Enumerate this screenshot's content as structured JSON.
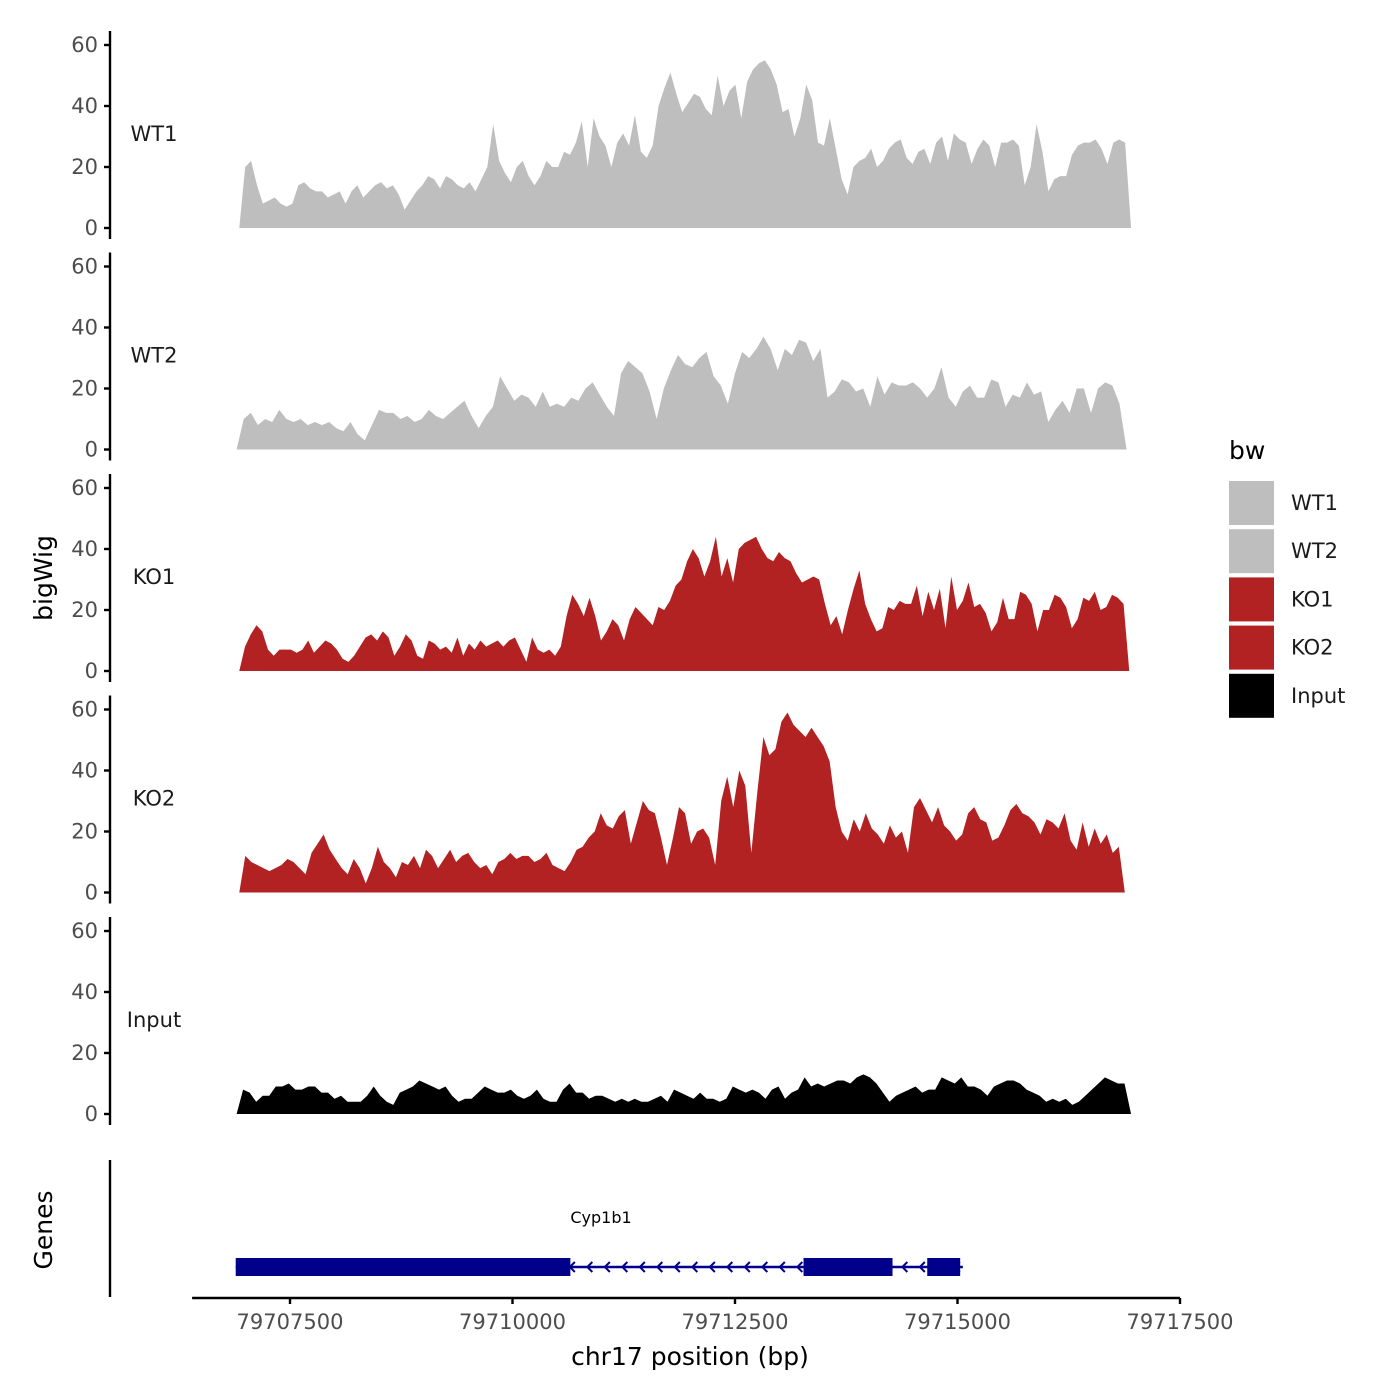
{
  "chart_data": {
    "type": "area",
    "ylabel": "bigWig",
    "xlabel": "chr17 position (bp)",
    "ylim": [
      0,
      60
    ],
    "yticks": [
      0,
      20,
      40,
      60
    ],
    "xlim": [
      79706400,
      79717500
    ],
    "xticks": [
      79707500,
      79710000,
      79712500,
      79715000,
      79717500
    ],
    "legend": {
      "title": "bw",
      "position": "right",
      "entries": [
        {
          "name": "WT1",
          "color": "#bebebe"
        },
        {
          "name": "WT2",
          "color": "#bebebe"
        },
        {
          "name": "KO1",
          "color": "#b22222"
        },
        {
          "name": "KO2",
          "color": "#b22222"
        },
        {
          "name": "Input",
          "color": "#000000"
        }
      ]
    },
    "tracks": [
      {
        "name": "WT1",
        "color": "#bebebe",
        "x_start": 79706930,
        "x_end": 79716950,
        "values": [
          0,
          20,
          22,
          14,
          8,
          9,
          10,
          8,
          7,
          8,
          14,
          15,
          13,
          12,
          12,
          10,
          11,
          12,
          8,
          12,
          14,
          10,
          12,
          14,
          15,
          13,
          14,
          11,
          6,
          9,
          12,
          14,
          17,
          16,
          13,
          17,
          16,
          14,
          13,
          15,
          12,
          16,
          20,
          34,
          22,
          18,
          15,
          20,
          22,
          17,
          14,
          17,
          22,
          20,
          20,
          25,
          24,
          28,
          35,
          20,
          36,
          30,
          27,
          20,
          28,
          31,
          27,
          37,
          25,
          23,
          27,
          40,
          46,
          51,
          44,
          38,
          41,
          44,
          43,
          39,
          37,
          50,
          40,
          45,
          47,
          36,
          48,
          52,
          54,
          55,
          52,
          47,
          38,
          39,
          30,
          36,
          47,
          42,
          28,
          27,
          36,
          26,
          16,
          11,
          20,
          22,
          23,
          26,
          20,
          22,
          26,
          28,
          29,
          23,
          21,
          25,
          26,
          21,
          28,
          30,
          22,
          31,
          29,
          28,
          21,
          26,
          29,
          27,
          20,
          28,
          28,
          29,
          27,
          14,
          20,
          34,
          25,
          12,
          16,
          17,
          17,
          24,
          27,
          28,
          28,
          29,
          26,
          21,
          28,
          29,
          28,
          0
        ]
      },
      {
        "name": "WT2",
        "color": "#bebebe",
        "x_start": 79706900,
        "x_end": 79716900,
        "values": [
          0,
          10,
          12,
          8,
          10,
          9,
          13,
          10,
          9,
          10,
          8,
          9,
          8,
          9,
          7,
          6,
          9,
          5,
          3,
          8,
          13,
          12,
          12,
          10,
          11,
          9,
          10,
          13,
          11,
          10,
          12,
          14,
          16,
          11,
          7,
          11,
          14,
          24,
          20,
          16,
          18,
          17,
          14,
          19,
          14,
          15,
          14,
          17,
          16,
          20,
          22,
          18,
          14,
          11,
          25,
          29,
          27,
          25,
          19,
          10,
          20,
          26,
          31,
          28,
          27,
          30,
          32,
          24,
          21,
          15,
          25,
          32,
          30,
          33,
          37,
          33,
          26,
          33,
          31,
          36,
          35,
          29,
          33,
          17,
          19,
          23,
          22,
          19,
          20,
          14,
          24,
          18,
          22,
          21,
          21,
          22,
          20,
          17,
          20,
          27,
          17,
          14,
          19,
          21,
          17,
          17,
          23,
          22,
          14,
          18,
          17,
          22,
          18,
          19,
          9,
          13,
          16,
          12,
          20,
          20,
          12,
          20,
          22,
          21,
          15,
          0
        ]
      },
      {
        "name": "KO1",
        "color": "#b22222",
        "x_start": 79706930,
        "x_end": 79716930,
        "values": [
          0,
          8,
          12,
          15,
          13,
          7,
          5,
          7,
          7,
          7,
          6,
          7,
          10,
          6,
          8,
          10,
          9,
          7,
          4,
          3,
          5,
          8,
          11,
          12,
          10,
          13,
          11,
          5,
          8,
          12,
          10,
          5,
          4,
          10,
          9,
          7,
          8,
          6,
          11,
          5,
          9,
          7,
          10,
          8,
          9,
          10,
          8,
          10,
          11,
          7,
          3,
          11,
          7,
          6,
          7,
          5,
          8,
          18,
          25,
          22,
          18,
          24,
          18,
          10,
          13,
          17,
          15,
          10,
          17,
          21,
          19,
          17,
          15,
          21,
          20,
          23,
          28,
          30,
          36,
          40,
          37,
          31,
          36,
          44,
          31,
          37,
          29,
          40,
          42,
          43,
          44,
          40,
          37,
          36,
          39,
          37,
          36,
          32,
          29,
          30,
          31,
          30,
          22,
          15,
          18,
          12,
          20,
          27,
          33,
          22,
          17,
          13,
          14,
          21,
          20,
          23,
          22,
          22,
          28,
          18,
          26,
          20,
          27,
          14,
          31,
          20,
          23,
          29,
          21,
          22,
          19,
          13,
          16,
          24,
          17,
          17,
          26,
          25,
          22,
          13,
          20,
          20,
          25,
          24,
          21,
          14,
          17,
          24,
          23,
          26,
          20,
          21,
          25,
          24,
          22,
          0
        ]
      },
      {
        "name": "KO2",
        "color": "#b22222",
        "x_start": 79706930,
        "x_end": 79716880,
        "values": [
          0,
          12,
          10,
          9,
          8,
          7,
          8,
          9,
          11,
          10,
          8,
          6,
          13,
          16,
          19,
          14,
          11,
          8,
          6,
          11,
          8,
          3,
          8,
          15,
          10,
          8,
          5,
          10,
          9,
          12,
          8,
          14,
          12,
          8,
          11,
          14,
          10,
          12,
          13,
          10,
          8,
          9,
          6,
          10,
          11,
          13,
          11,
          12,
          12,
          10,
          11,
          13,
          9,
          8,
          7,
          10,
          14,
          15,
          18,
          20,
          26,
          22,
          21,
          25,
          27,
          16,
          23,
          30,
          27,
          26,
          18,
          9,
          18,
          28,
          26,
          16,
          20,
          21,
          18,
          9,
          30,
          38,
          28,
          40,
          35,
          13,
          33,
          51,
          45,
          47,
          56,
          59,
          55,
          53,
          51,
          54,
          51,
          48,
          43,
          28,
          20,
          17,
          24,
          20,
          26,
          21,
          19,
          16,
          22,
          18,
          20,
          13,
          28,
          31,
          27,
          23,
          28,
          22,
          20,
          17,
          19,
          26,
          28,
          24,
          23,
          17,
          18,
          22,
          27,
          29,
          26,
          25,
          23,
          19,
          24,
          23,
          21,
          26,
          17,
          14,
          23,
          15,
          21,
          16,
          19,
          13,
          15,
          0
        ]
      },
      {
        "name": "Input",
        "color": "#000000",
        "x_start": 79706900,
        "x_end": 79716950,
        "values": [
          0,
          8,
          7,
          4,
          6,
          6,
          9,
          9,
          10,
          8,
          8,
          9,
          9,
          7,
          7,
          5,
          6,
          4,
          4,
          4,
          6,
          9,
          6,
          4,
          3,
          7,
          8,
          9,
          11,
          10,
          9,
          8,
          9,
          6,
          4,
          5,
          5,
          7,
          9,
          8,
          7,
          7,
          8,
          6,
          5,
          6,
          8,
          5,
          4,
          4,
          8,
          10,
          7,
          7,
          5,
          6,
          6,
          5,
          4,
          5,
          4,
          5,
          4,
          4,
          5,
          6,
          4,
          8,
          7,
          6,
          5,
          7,
          5,
          5,
          4,
          5,
          9,
          8,
          7,
          8,
          7,
          5,
          8,
          9,
          5,
          7,
          8,
          12,
          9,
          10,
          9,
          10,
          11,
          11,
          10,
          12,
          13,
          12,
          10,
          7,
          4,
          6,
          7,
          8,
          9,
          7,
          8,
          8,
          12,
          11,
          10,
          12,
          9,
          9,
          8,
          6,
          9,
          10,
          11,
          11,
          10,
          8,
          7,
          6,
          4,
          5,
          4,
          5,
          3,
          4,
          6,
          8,
          10,
          12,
          11,
          10,
          10,
          0
        ]
      }
    ],
    "genes": [
      {
        "name": "Cyp1b1",
        "strand": "-",
        "color": "#00008b",
        "start": 79706890,
        "end": 79715060,
        "exons": [
          [
            79706890,
            79710650
          ],
          [
            79713270,
            79714270
          ],
          [
            79714660,
            79715030
          ]
        ]
      }
    ],
    "genes_ylabel": "Genes"
  }
}
